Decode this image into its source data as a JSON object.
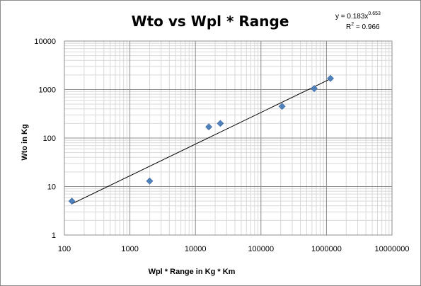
{
  "chart_data": {
    "type": "scatter",
    "title": "Wto vs Wpl * Range",
    "xlabel": "Wpl * Range in Kg * Km",
    "ylabel": "Wto in Kg",
    "x_scale": "log",
    "y_scale": "log",
    "xlim": [
      100,
      10000000
    ],
    "ylim": [
      1,
      10000
    ],
    "x_ticks": [
      "100",
      "1000",
      "10000",
      "100000",
      "1000000",
      "10000000"
    ],
    "y_ticks": [
      "1",
      "10",
      "100",
      "1000",
      "10000"
    ],
    "grid": true,
    "marker_color": "#4f81bd",
    "trendline_color": "#000000",
    "series": [
      {
        "points": [
          {
            "x": 130,
            "y": 5
          },
          {
            "x": 2000,
            "y": 13
          },
          {
            "x": 16000,
            "y": 170
          },
          {
            "x": 24000,
            "y": 200
          },
          {
            "x": 210000,
            "y": 450
          },
          {
            "x": 650000,
            "y": 1050
          },
          {
            "x": 1150000,
            "y": 1700
          }
        ]
      }
    ],
    "trendline": {
      "type": "power",
      "coefficient": 0.183,
      "exponent": 0.653,
      "r_squared": 0.966,
      "x_range": [
        130,
        1150000
      ],
      "equation_base": "y = 0.183x",
      "equation_exponent": "0.653",
      "r2_prefix": "R",
      "r2_superscript": "2",
      "r2_value": " = 0.966"
    }
  }
}
